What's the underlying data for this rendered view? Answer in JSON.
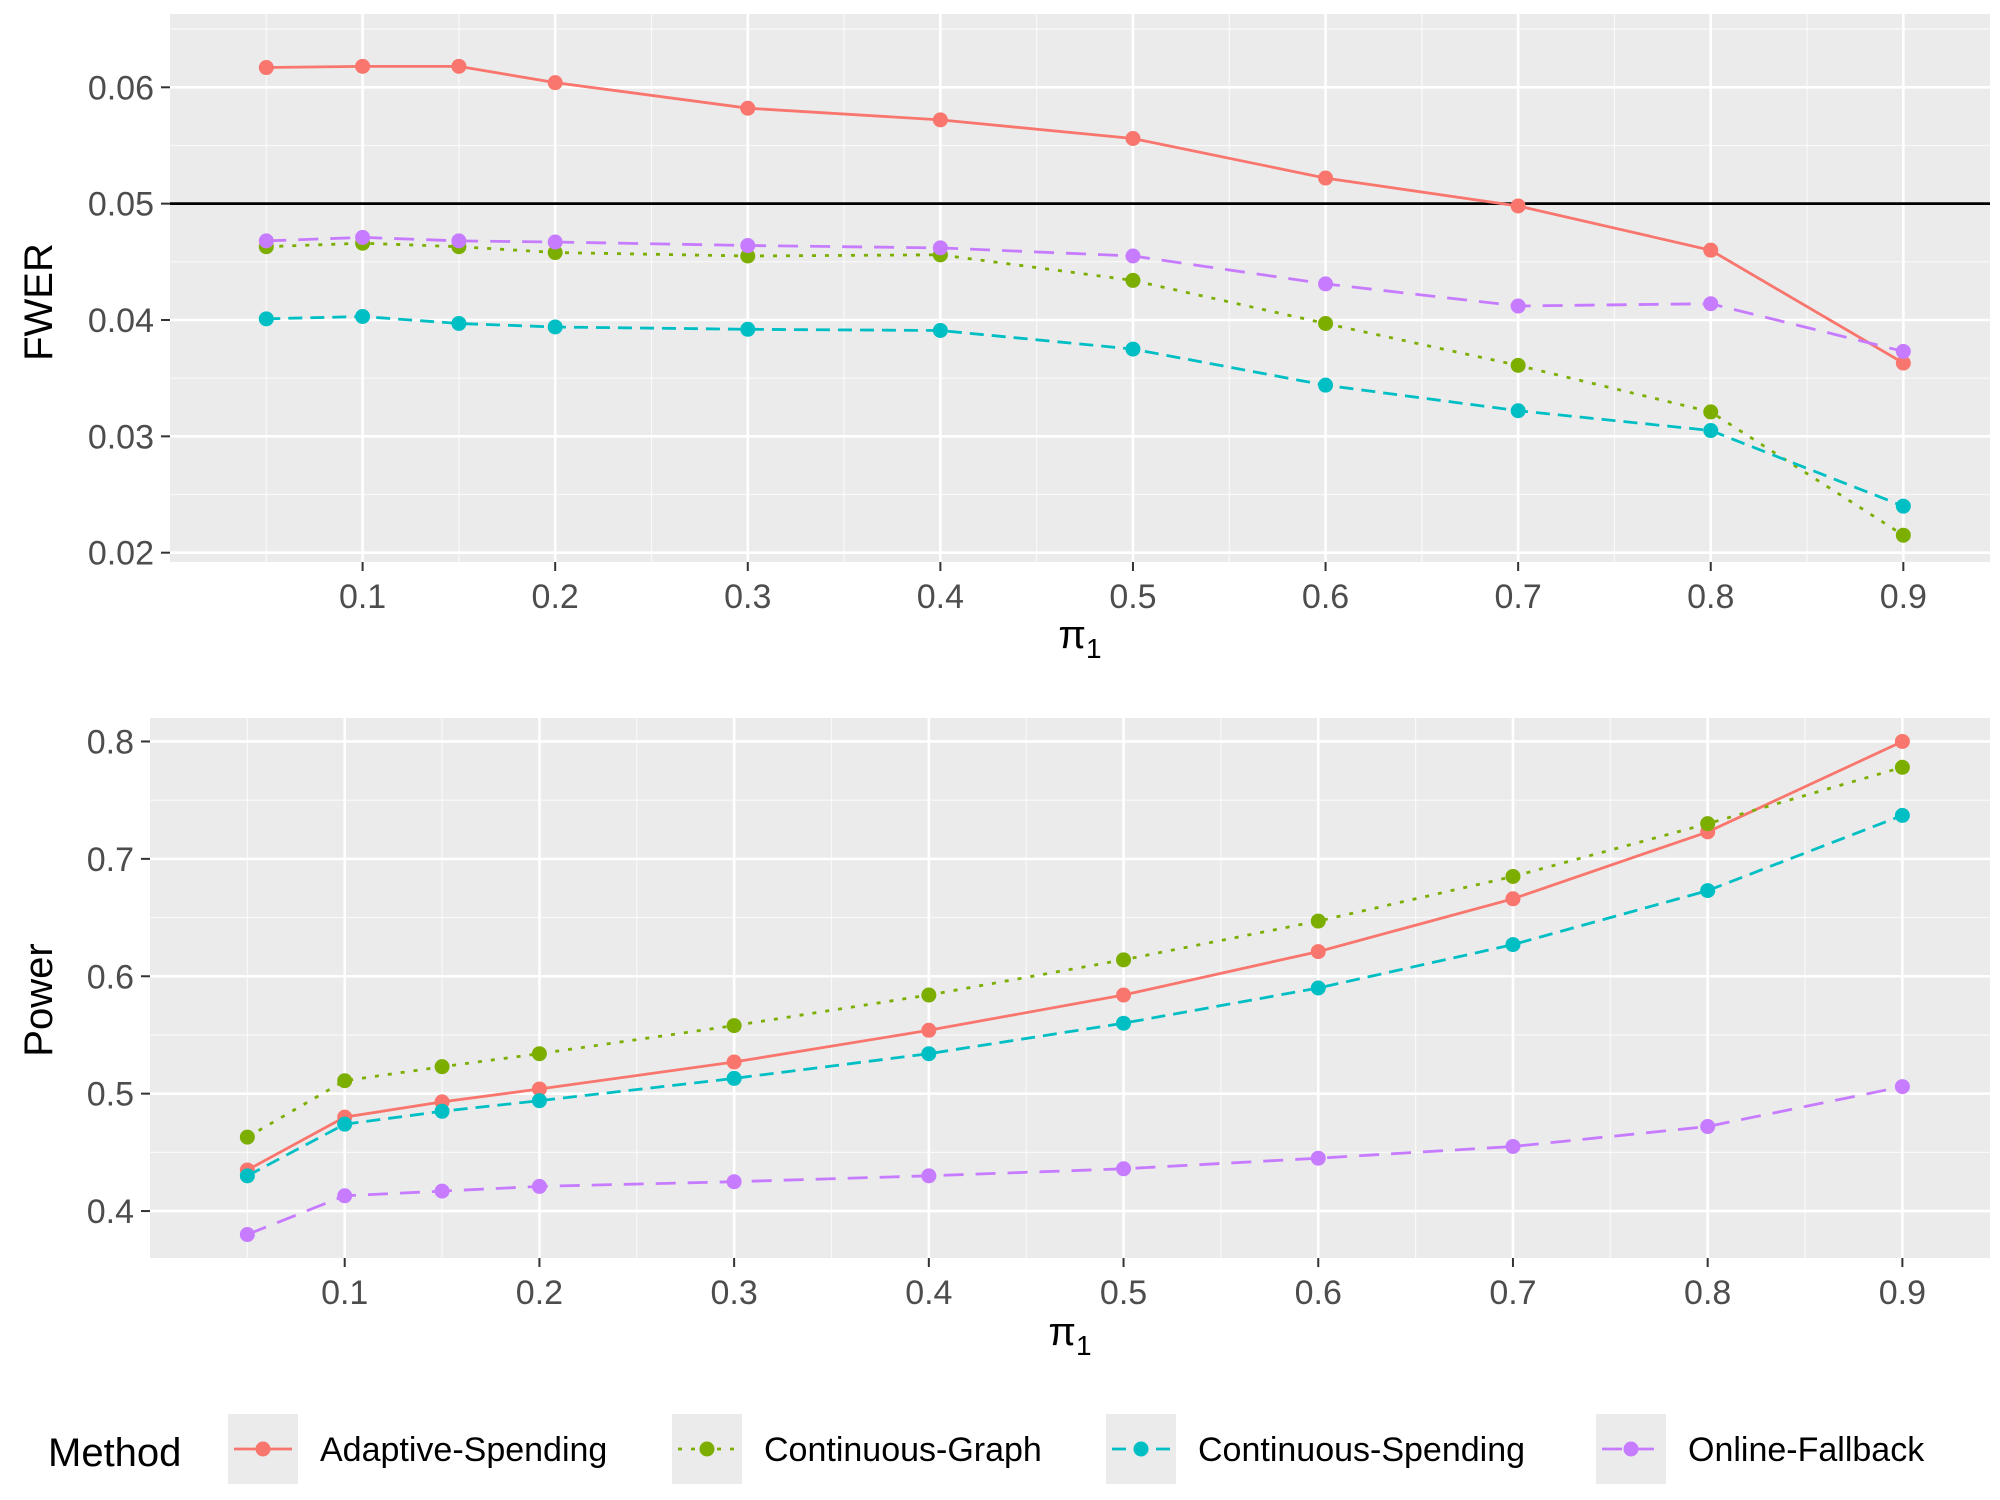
{
  "chart_data": [
    {
      "type": "line",
      "id": "fwer",
      "title": "",
      "xlabel_symbol": "π",
      "xlabel_subscript": "1",
      "ylabel": "FWER",
      "x": [
        0.05,
        0.1,
        0.15,
        0.2,
        0.3,
        0.4,
        0.5,
        0.6,
        0.7,
        0.8,
        0.9
      ],
      "xlim": [
        0.0,
        0.945
      ],
      "ylim": [
        0.0192,
        0.0663
      ],
      "xticks": [
        0.1,
        0.2,
        0.3,
        0.4,
        0.5,
        0.6,
        0.7,
        0.8,
        0.9
      ],
      "xtick_labels": [
        "0.1",
        "0.2",
        "0.3",
        "0.4",
        "0.5",
        "0.6",
        "0.7",
        "0.8",
        "0.9"
      ],
      "yticks": [
        0.02,
        0.03,
        0.04,
        0.05,
        0.06
      ],
      "ytick_labels": [
        "0.02",
        "0.03",
        "0.04",
        "0.05",
        "0.06"
      ],
      "hline": 0.05,
      "grid": true,
      "series": [
        {
          "name": "Adaptive-Spending",
          "values": [
            0.0617,
            0.0618,
            0.0618,
            0.0604,
            0.0582,
            0.0572,
            0.0556,
            0.0522,
            0.0498,
            0.046,
            0.0363
          ]
        },
        {
          "name": "Continuous-Graph",
          "values": [
            0.0463,
            0.0466,
            0.0463,
            0.0458,
            0.0455,
            0.0456,
            0.0434,
            0.0397,
            0.0361,
            0.0321,
            0.0215
          ]
        },
        {
          "name": "Continuous-Spending",
          "values": [
            0.0401,
            0.0403,
            0.0397,
            0.0394,
            0.0392,
            0.0391,
            0.0375,
            0.0344,
            0.0322,
            0.0305,
            0.024
          ]
        },
        {
          "name": "Online-Fallback",
          "values": [
            0.0468,
            0.0471,
            0.0468,
            0.0467,
            0.0464,
            0.0462,
            0.0455,
            0.0431,
            0.0412,
            0.0414,
            0.0373
          ]
        }
      ]
    },
    {
      "type": "line",
      "id": "power",
      "title": "",
      "xlabel_symbol": "π",
      "xlabel_subscript": "1",
      "ylabel": "Power",
      "x": [
        0.05,
        0.1,
        0.15,
        0.2,
        0.3,
        0.4,
        0.5,
        0.6,
        0.7,
        0.8,
        0.9
      ],
      "xlim": [
        0.0,
        0.945
      ],
      "ylim": [
        0.36,
        0.82
      ],
      "xticks": [
        0.1,
        0.2,
        0.3,
        0.4,
        0.5,
        0.6,
        0.7,
        0.8,
        0.9
      ],
      "xtick_labels": [
        "0.1",
        "0.2",
        "0.3",
        "0.4",
        "0.5",
        "0.6",
        "0.7",
        "0.8",
        "0.9"
      ],
      "yticks": [
        0.4,
        0.5,
        0.6,
        0.7,
        0.8
      ],
      "ytick_labels": [
        "0.4",
        "0.5",
        "0.6",
        "0.7",
        "0.8"
      ],
      "grid": true,
      "series": [
        {
          "name": "Adaptive-Spending",
          "values": [
            0.435,
            0.48,
            0.493,
            0.504,
            0.527,
            0.554,
            0.584,
            0.621,
            0.666,
            0.723,
            0.8
          ]
        },
        {
          "name": "Continuous-Graph",
          "values": [
            0.463,
            0.511,
            0.523,
            0.534,
            0.558,
            0.584,
            0.614,
            0.647,
            0.685,
            0.73,
            0.778
          ]
        },
        {
          "name": "Continuous-Spending",
          "values": [
            0.43,
            0.474,
            0.485,
            0.494,
            0.513,
            0.534,
            0.56,
            0.59,
            0.627,
            0.673,
            0.737
          ]
        },
        {
          "name": "Online-Fallback",
          "values": [
            0.38,
            0.413,
            0.417,
            0.421,
            0.425,
            0.43,
            0.436,
            0.445,
            0.455,
            0.472,
            0.506
          ]
        }
      ]
    }
  ],
  "legend": {
    "title": "Method",
    "placement": "bottom",
    "items": [
      {
        "name": "Adaptive-Spending",
        "color": "#F8766D",
        "dash": "solid"
      },
      {
        "name": "Continuous-Graph",
        "color": "#7CAE00",
        "dash": "dotted"
      },
      {
        "name": "Continuous-Spending",
        "color": "#00BFC4",
        "dash": "dashed"
      },
      {
        "name": "Online-Fallback",
        "color": "#C77CFF",
        "dash": "longdash"
      }
    ]
  },
  "colors": {
    "panel_background": "#EBEBEB",
    "grid_major": "#FFFFFF",
    "reference_line": "#000000"
  }
}
